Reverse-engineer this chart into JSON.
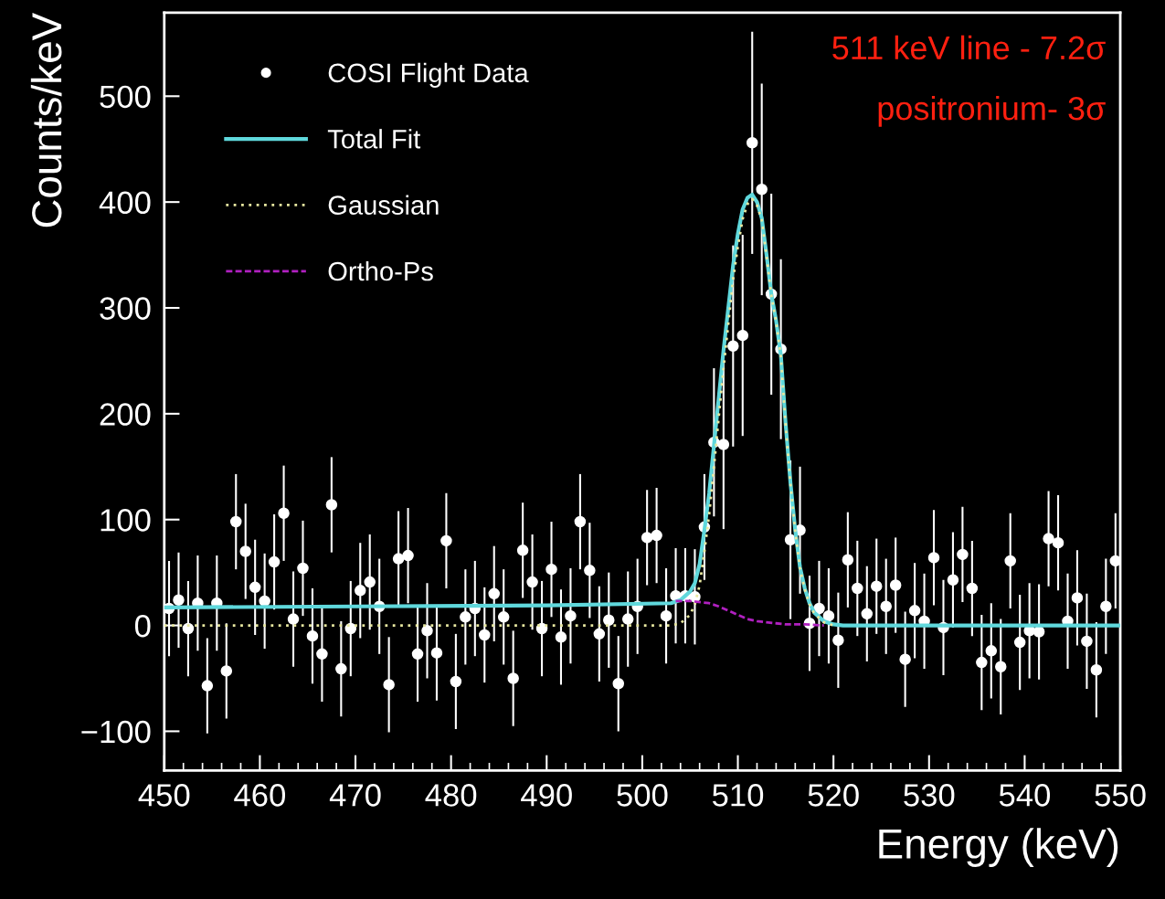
{
  "chart_data": {
    "type": "scatter",
    "xlabel": "Energy (keV)",
    "ylabel": "Counts/keV",
    "xlim": [
      450,
      550
    ],
    "xticks": [
      450,
      460,
      470,
      480,
      490,
      500,
      510,
      520,
      530,
      540,
      550
    ],
    "ylim": [
      -137,
      579
    ],
    "yticks": [
      {
        "value": -100,
        "label": "−100"
      },
      0,
      100,
      200,
      300,
      400,
      500
    ],
    "legend": "top left",
    "grid": false,
    "annotations": [
      "511 keV line - 7.2σ",
      "positronium- 3σ"
    ],
    "series": [
      {
        "name": "COSI Flight Data",
        "color": "#ffffff",
        "marker": "circle",
        "x": [
          450.5,
          451.5,
          452.5,
          453.5,
          454.5,
          455.5,
          456.5,
          457.5,
          458.5,
          459.5,
          460.5,
          461.5,
          462.5,
          463.5,
          464.5,
          465.5,
          466.5,
          467.5,
          468.5,
          469.5,
          470.5,
          471.5,
          472.5,
          473.5,
          474.5,
          475.5,
          476.5,
          477.5,
          478.5,
          479.5,
          480.5,
          481.5,
          482.5,
          483.5,
          484.5,
          485.5,
          486.5,
          487.5,
          488.5,
          489.5,
          490.5,
          491.5,
          492.5,
          493.5,
          494.5,
          495.5,
          496.5,
          497.5,
          498.5,
          499.5,
          500.5,
          501.5,
          502.5,
          503.5,
          504.5,
          505.5,
          506.5,
          507.5,
          508.5,
          509.5,
          510.5,
          511.5,
          512.5,
          513.5,
          514.5,
          515.5,
          516.5,
          517.5,
          518.5,
          519.5,
          520.5,
          521.5,
          522.5,
          523.5,
          524.5,
          525.5,
          526.5,
          527.5,
          528.5,
          529.5,
          530.5,
          531.5,
          532.5,
          533.5,
          534.5,
          535.5,
          536.5,
          537.5,
          538.5,
          539.5,
          540.5,
          541.5,
          542.5,
          543.5,
          544.5,
          545.5,
          546.5,
          547.5,
          548.5,
          549.5
        ],
        "values": [
          16,
          24,
          -3,
          21,
          -57,
          21,
          -43,
          98,
          70,
          36,
          23,
          60,
          106,
          6,
          54,
          -10,
          -27,
          114,
          -41,
          -3,
          33,
          41,
          18,
          -56,
          63,
          66,
          -27,
          -5,
          -26,
          80,
          -53,
          8,
          16,
          -9,
          30,
          8,
          -50,
          71,
          41,
          -3,
          53,
          -11,
          9,
          98,
          52,
          -8,
          5,
          -55,
          6,
          18,
          83,
          85,
          9,
          28,
          28,
          27,
          93,
          173,
          171,
          264,
          274,
          456,
          412,
          313,
          261,
          81,
          90,
          2,
          16,
          9,
          -14,
          62,
          35,
          11,
          37,
          18,
          38,
          -32,
          14,
          4,
          64,
          -2,
          43,
          67,
          35,
          -35,
          -24,
          -39,
          61,
          -16,
          -5,
          -6,
          82,
          78,
          4,
          26,
          -15,
          -42,
          18,
          61
        ],
        "errors": [
          45,
          45,
          45,
          45,
          45,
          45,
          45,
          45,
          45,
          45,
          45,
          45,
          45,
          45,
          45,
          45,
          45,
          45,
          45,
          45,
          45,
          45,
          45,
          45,
          45,
          45,
          45,
          45,
          45,
          45,
          45,
          45,
          45,
          45,
          45,
          45,
          45,
          45,
          45,
          45,
          45,
          45,
          45,
          45,
          45,
          45,
          45,
          45,
          45,
          45,
          45,
          45,
          45,
          45,
          45,
          45,
          50,
          70,
          80,
          95,
          95,
          105,
          100,
          95,
          85,
          75,
          60,
          45,
          45,
          45,
          45,
          45,
          45,
          45,
          45,
          45,
          45,
          45,
          45,
          45,
          45,
          45,
          45,
          45,
          45,
          45,
          45,
          45,
          45,
          45,
          45,
          45,
          45,
          45,
          45,
          45,
          45,
          45,
          45,
          45
        ]
      },
      {
        "name": "Total Fit",
        "type": "line",
        "color": "#5fd8dc",
        "line_style": "solid",
        "x": [
          450,
          470,
          490,
          503,
          504,
          504.5,
          505,
          505.5,
          506,
          506.5,
          507,
          507.5,
          508,
          508.5,
          509,
          509.5,
          510,
          510.5,
          511,
          511.5,
          512,
          512.5,
          513,
          513.5,
          514,
          514.5,
          515,
          515.5,
          516,
          516.5,
          517,
          517.5,
          518,
          519,
          520,
          521,
          550
        ],
        "values": [
          17,
          18,
          19,
          21,
          24,
          28,
          32,
          40,
          58,
          90,
          125,
          170,
          215,
          260,
          300,
          340,
          370,
          393,
          404,
          407,
          400,
          385,
          350,
          313,
          288,
          255,
          190,
          135,
          90,
          55,
          35,
          21,
          12,
          4,
          1,
          0,
          0
        ]
      },
      {
        "name": "Gaussian",
        "type": "line",
        "color": "#e8e8a0",
        "line_style": "dotted",
        "x": [
          450,
          503,
          504,
          505,
          505.5,
          506,
          506.5,
          507,
          507.5,
          508,
          508.5,
          509,
          509.5,
          510,
          510.5,
          511,
          511.5,
          512,
          512.5,
          513,
          513.5,
          514,
          514.5,
          515,
          515.5,
          516,
          516.5,
          517,
          517.5,
          518,
          519,
          520
        ],
        "values": [
          0,
          0,
          2,
          10,
          20,
          38,
          70,
          105,
          150,
          197,
          243,
          285,
          327,
          358,
          384,
          398,
          403,
          397,
          383,
          349,
          312,
          287,
          254,
          189,
          134,
          89,
          54,
          34,
          20,
          11,
          3,
          0
        ]
      },
      {
        "name": "Ortho-Ps",
        "type": "line",
        "color": "#b020c0",
        "line_style": "dashed",
        "x": [
          503.5,
          505,
          507,
          508,
          509,
          510,
          511,
          512,
          513,
          514,
          515,
          517,
          519
        ],
        "values": [
          23,
          23,
          21,
          18,
          14,
          10,
          6,
          4,
          3,
          2,
          1,
          1,
          0
        ]
      }
    ]
  }
}
